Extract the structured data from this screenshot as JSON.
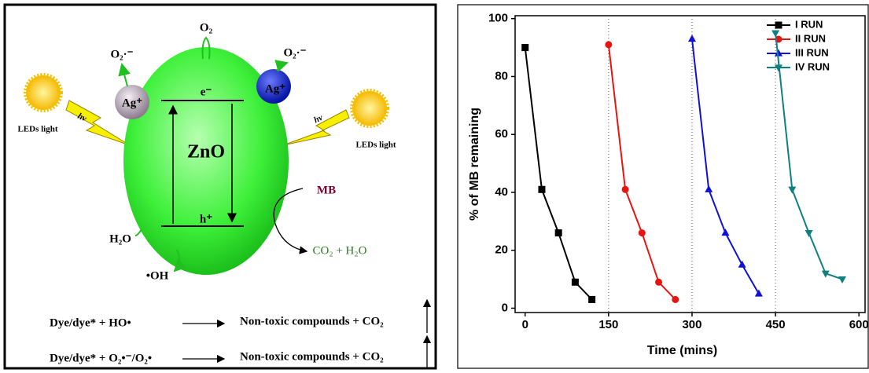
{
  "diagram": {
    "o2_top": "O₂",
    "superoxide_left": "O₂·⁻",
    "superoxide_right": "O₂·⁻",
    "ag_left": "Ag⁺",
    "ag_right": "Ag⁺",
    "led_left": "LEDs light",
    "led_right": "LEDs light",
    "hv_left": "hν",
    "hv_right": "hν",
    "electron": "e⁻",
    "semiconductor": "ZnO",
    "hole": "h⁺",
    "dye": "MB",
    "water": "H₂O",
    "hydroxyl": "•OH",
    "products": "CO₂ + H₂O",
    "eq1_left": "Dye/dye* + HO•",
    "eq1_right": "Non-toxic compounds + CO₂",
    "eq2_left": "Dye/dye* + O₂•⁻/O₂•",
    "eq2_right": "Non-toxic compounds + CO₂"
  },
  "chart_data": {
    "type": "line",
    "xlabel": "Time (mins)",
    "ylabel": "% of MB remaining",
    "xlim": [
      -18,
      611
    ],
    "ylim": [
      -1.5,
      101
    ],
    "xticks": [
      0,
      150,
      300,
      450,
      600
    ],
    "yticks": [
      0,
      20,
      40,
      60,
      80,
      100
    ],
    "dividers": [
      150,
      300,
      450
    ],
    "legend": "upper right",
    "series": [
      {
        "name": "I RUN",
        "color": "#000000",
        "marker": "square",
        "x": [
          0,
          30,
          60,
          90,
          120
        ],
        "values": [
          90,
          41,
          26,
          9,
          3
        ]
      },
      {
        "name": "II RUN",
        "color": "#e8140f",
        "marker": "circle",
        "x": [
          150,
          180,
          210,
          240,
          270
        ],
        "values": [
          91,
          41,
          26,
          9,
          3
        ]
      },
      {
        "name": "III RUN",
        "color": "#1010d8",
        "marker": "triangle",
        "x": [
          300,
          330,
          360,
          390,
          420
        ],
        "values": [
          93,
          41,
          26,
          15,
          5
        ]
      },
      {
        "name": "IV RUN",
        "color": "#0f8080",
        "marker": "down-triangle",
        "x": [
          450,
          480,
          510,
          540,
          570
        ],
        "values": [
          95,
          41,
          26,
          12,
          10
        ]
      }
    ]
  }
}
